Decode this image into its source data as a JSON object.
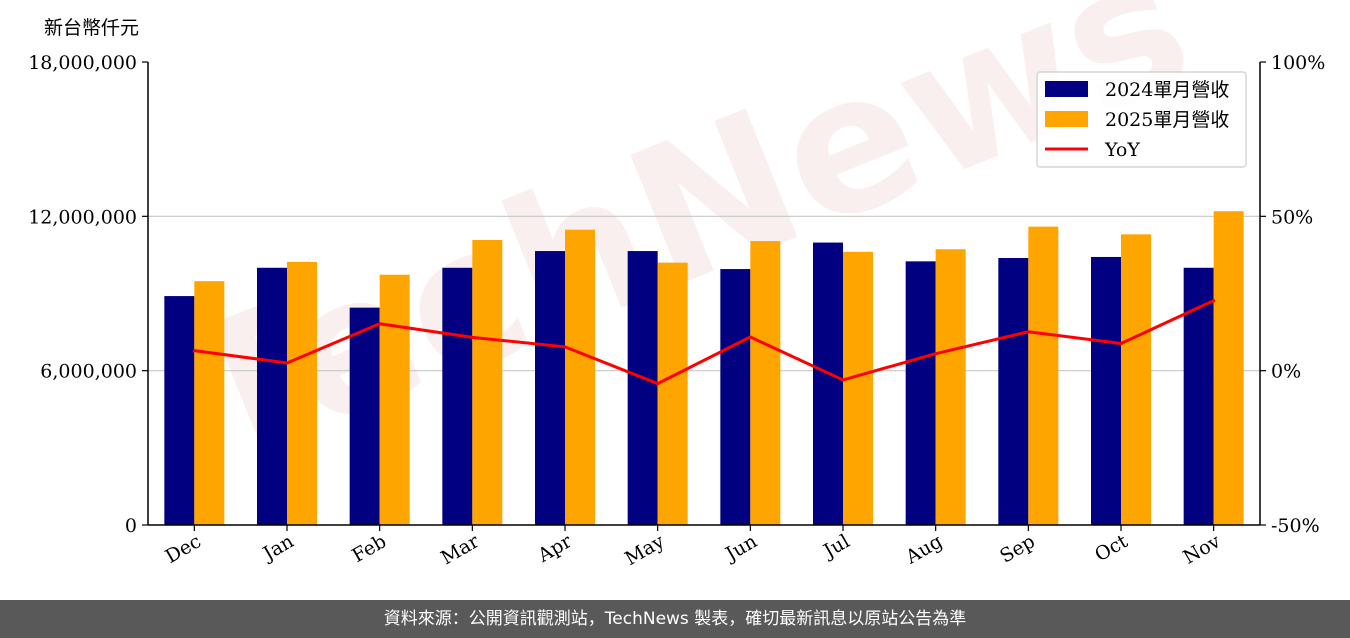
{
  "chart_data": {
    "type": "bar",
    "unit_label": "新台幣仟元",
    "categories": [
      "Dec",
      "Jan",
      "Feb",
      "Mar",
      "Apr",
      "May",
      "Jun",
      "Jul",
      "Aug",
      "Sep",
      "Oct",
      "Nov"
    ],
    "series": [
      {
        "name": "2024單月營收",
        "color": "#000080",
        "axis": "left",
        "values": [
          8900000,
          10000000,
          8450000,
          10000000,
          10650000,
          10650000,
          9950000,
          10980000,
          10250000,
          10380000,
          10420000,
          10000000
        ]
      },
      {
        "name": "2025單月營收",
        "color": "#ffa500",
        "axis": "left",
        "values": [
          9480000,
          10230000,
          9730000,
          11080000,
          11480000,
          10200000,
          11040000,
          10620000,
          10720000,
          11600000,
          11300000,
          12200000
        ]
      }
    ],
    "line_series": [
      {
        "name": "YoY",
        "color": "#ff0000",
        "axis": "right",
        "values": [
          6.5,
          2.5,
          15.2,
          10.8,
          7.7,
          -4.2,
          10.9,
          -3.0,
          5.5,
          12.6,
          8.8,
          22.7
        ]
      }
    ],
    "ylim_left": [
      0,
      18000000
    ],
    "ylim_right": [
      -50,
      100
    ],
    "left_ticks": [
      0,
      6000000,
      12000000,
      18000000
    ],
    "left_tick_labels": [
      "0",
      "6,000,000",
      "12,000,000",
      "18,000,000"
    ],
    "right_ticks": [
      -50,
      0,
      50,
      100
    ],
    "right_tick_labels": [
      "-50%",
      "0%",
      "50%",
      "100%"
    ],
    "grid": "horizontal",
    "legend_position": "top-right"
  },
  "watermark_text": "TechNews",
  "footer_text": "資料來源：公開資訊觀測站，TechNews 製表，確切最新訊息以原站公告為準"
}
